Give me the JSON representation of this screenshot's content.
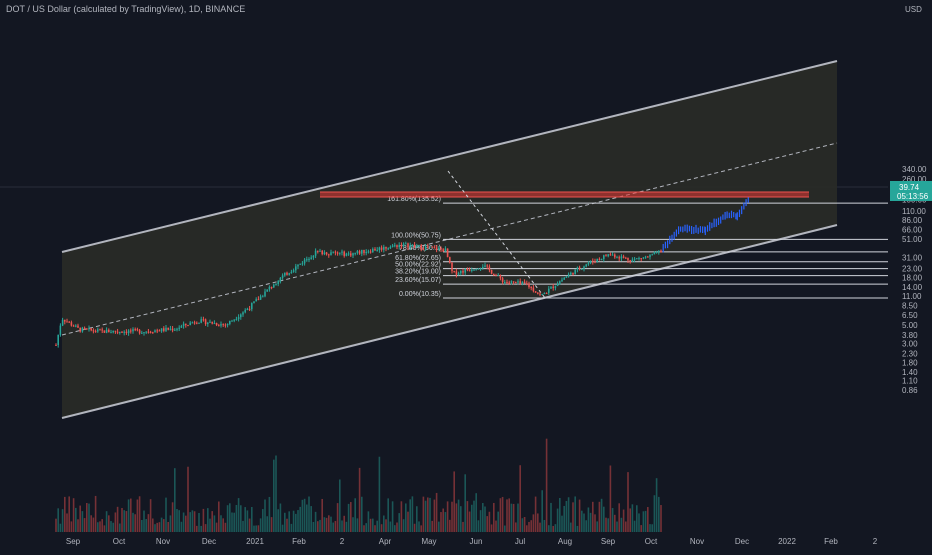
{
  "header": {
    "title": "DOT / US Dollar (calculated by TradingView), 1D, BINANCE"
  },
  "price_axis": {
    "currency": "USD",
    "ticks": [
      "340.00",
      "260.00",
      "200.00",
      "150.00",
      "110.00",
      "86.00",
      "66.00",
      "51.00",
      "31.00",
      "23.00",
      "18.00",
      "14.00",
      "11.00",
      "8.50",
      "6.50",
      "5.00",
      "3.80",
      "3.00",
      "2.30",
      "1.80",
      "1.40",
      "1.10",
      "0.86"
    ],
    "current_price": "39.74",
    "countdown": "05:13:56",
    "colors": {
      "badge": "#26a69a",
      "text": "#b2b5be"
    }
  },
  "time_axis": {
    "labels": [
      "Sep",
      "Oct",
      "Nov",
      "Dec",
      "2021",
      "Feb",
      "2",
      "Apr",
      "May",
      "Jun",
      "Jul",
      "Aug",
      "Sep",
      "Oct",
      "Nov",
      "Dec",
      "2022",
      "Feb",
      "2"
    ]
  },
  "colors": {
    "background": "#131722",
    "up": "#26a69a",
    "down": "#ef5350",
    "channel": "#b2b5be",
    "fib_line": "#d1d4dc",
    "projection": "#2962ff",
    "resistance": "#e53935"
  },
  "chart_data": {
    "type": "candlestick",
    "symbol": "DOT / US Dollar",
    "scale": "log",
    "ylim": [
      0.75,
      340
    ],
    "fib_levels": [
      {
        "label": "161.80%(135.52)",
        "ratio": 1.618,
        "price": 135.52
      },
      {
        "label": "100.00%(50.75)",
        "ratio": 1.0,
        "price": 50.75
      },
      {
        "label": "78.60%(36.1)",
        "ratio": 0.786,
        "price": 36.1
      },
      {
        "label": "61.80%(27.65)",
        "ratio": 0.618,
        "price": 27.65
      },
      {
        "label": "50.00%(22.92)",
        "ratio": 0.5,
        "price": 22.92
      },
      {
        "label": "38.20%(19.00)",
        "ratio": 0.382,
        "price": 19.0
      },
      {
        "label": "23.60%(15.07)",
        "ratio": 0.236,
        "price": 15.07
      },
      {
        "label": "0.00%(10.35)",
        "ratio": 0.0,
        "price": 10.35
      }
    ],
    "price_path": [
      [
        "2020-08-20",
        2.9
      ],
      [
        "2020-08-24",
        6.0
      ],
      [
        "2020-09-05",
        4.4
      ],
      [
        "2020-09-20",
        4.2
      ],
      [
        "2020-10-20",
        4.2
      ],
      [
        "2020-11-10",
        4.5
      ],
      [
        "2020-11-25",
        5.6
      ],
      [
        "2020-12-15",
        5.0
      ],
      [
        "2021-01-01",
        8.3
      ],
      [
        "2021-01-20",
        17.0
      ],
      [
        "2021-02-15",
        36.0
      ],
      [
        "2021-03-10",
        34.0
      ],
      [
        "2021-04-01",
        40.0
      ],
      [
        "2021-04-15",
        44.0
      ],
      [
        "2021-05-15",
        38.0
      ],
      [
        "2021-05-20",
        20.0
      ],
      [
        "2021-06-10",
        25.0
      ],
      [
        "2021-06-25",
        16.0
      ],
      [
        "2021-07-10",
        15.0
      ],
      [
        "2021-07-20",
        11.0
      ],
      [
        "2021-08-05",
        18.0
      ],
      [
        "2021-08-20",
        26.0
      ],
      [
        "2021-09-05",
        34.0
      ],
      [
        "2021-09-20",
        29.0
      ],
      [
        "2021-10-03",
        32.0
      ],
      [
        "2021-10-12",
        38.0
      ]
    ],
    "projection_path": [
      [
        "2021-10-12",
        39.74
      ],
      [
        "2021-10-24",
        68.0
      ],
      [
        "2021-11-10",
        65.0
      ],
      [
        "2021-11-25",
        100.0
      ],
      [
        "2021-12-02",
        95.0
      ],
      [
        "2021-12-10",
        150.0
      ]
    ]
  }
}
